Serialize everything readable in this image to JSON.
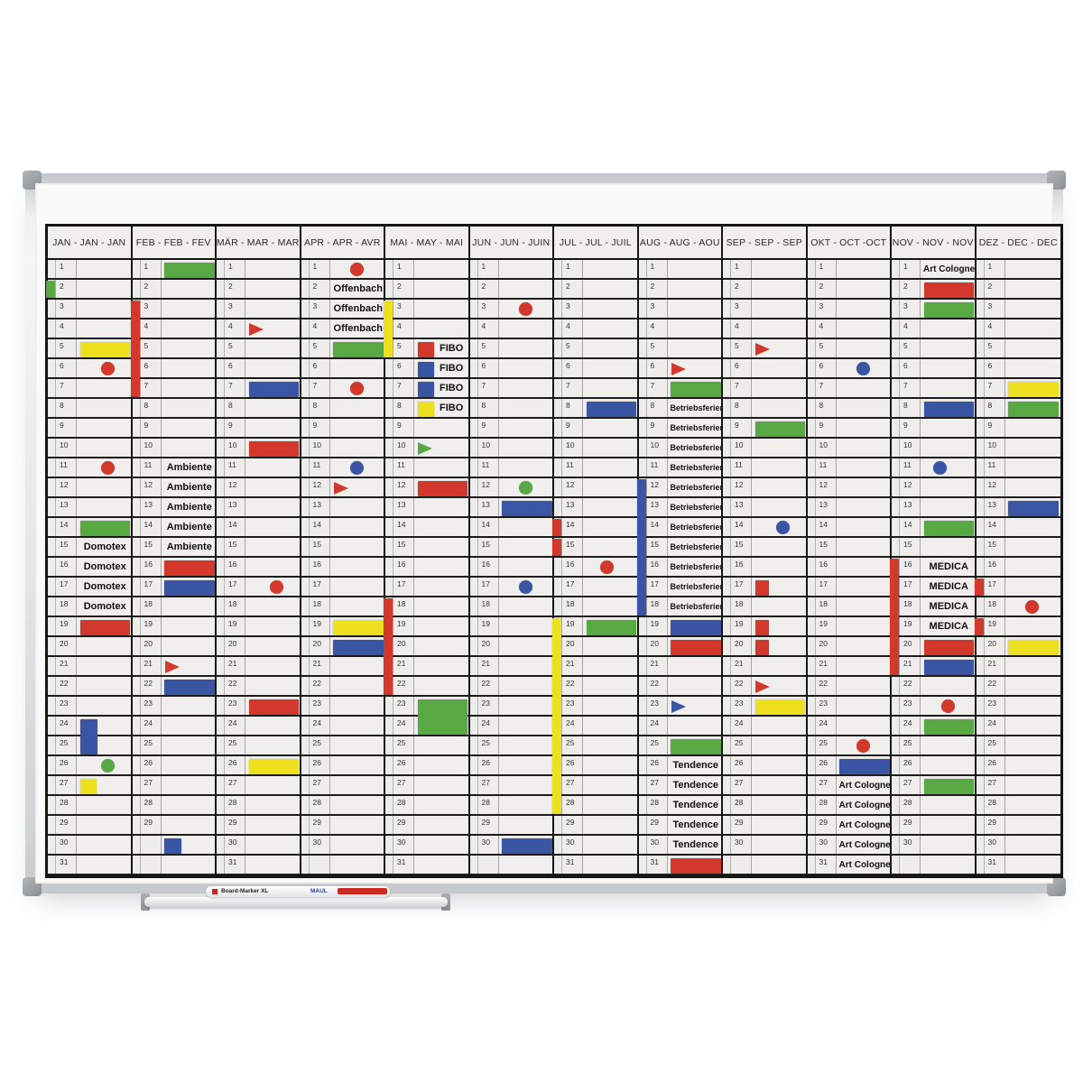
{
  "colors": {
    "red": "#d2382b",
    "green": "#58a944",
    "blue": "#3b55a5",
    "yellow": "#eee01f",
    "grid_line": "#1c1c1c",
    "cell_bg": "#f0efed",
    "header_bg": "#f0efee",
    "frame_silver": "#d9dbdd",
    "corner_cap": "#989ea3"
  },
  "tray": {
    "pen_text": "Board-Marker XL",
    "pen_brand": "MAUL"
  },
  "board": {
    "rows_per_month": 31,
    "months": [
      {
        "label": "JAN - JAN - JAN",
        "numbered_to": 31,
        "markers": [
          {
            "day": 2,
            "type": "vstrip",
            "color": "green",
            "span": 1
          },
          {
            "day": 5,
            "type": "bar",
            "color": "yellow"
          },
          {
            "day": 6,
            "type": "dot",
            "color": "red",
            "x": 0.55
          },
          {
            "day": 11,
            "type": "dot",
            "color": "red",
            "x": 0.55
          },
          {
            "day": 14,
            "type": "bar",
            "color": "green"
          },
          {
            "day": 15,
            "type": "text",
            "label": "Domotex"
          },
          {
            "day": 16,
            "type": "text",
            "label": "Domotex"
          },
          {
            "day": 17,
            "type": "text",
            "label": "Domotex"
          },
          {
            "day": 18,
            "type": "text",
            "label": "Domotex"
          },
          {
            "day": 19,
            "type": "bar",
            "color": "red"
          },
          {
            "day": 24,
            "type": "bar",
            "color": "blue",
            "w": 0.37,
            "span": 2
          },
          {
            "day": 26,
            "type": "dot",
            "color": "green",
            "x": 0.55
          },
          {
            "day": 27,
            "type": "bar",
            "color": "yellow",
            "w": 0.35
          }
        ]
      },
      {
        "label": "FEB - FEB - FEV",
        "numbered_to": 29,
        "markers": [
          {
            "day": 1,
            "type": "bar",
            "color": "green"
          },
          {
            "day": 3,
            "type": "vstrip",
            "color": "red",
            "span": 5
          },
          {
            "day": 11,
            "type": "text",
            "label": "Ambiente"
          },
          {
            "day": 12,
            "type": "text",
            "label": "Ambiente"
          },
          {
            "day": 13,
            "type": "text",
            "label": "Ambiente"
          },
          {
            "day": 14,
            "type": "text",
            "label": "Ambiente"
          },
          {
            "day": 15,
            "type": "text",
            "label": "Ambiente"
          },
          {
            "day": 16,
            "type": "bar",
            "color": "red"
          },
          {
            "day": 17,
            "type": "bar",
            "color": "blue"
          },
          {
            "day": 21,
            "type": "flag",
            "color": "red"
          },
          {
            "day": 22,
            "type": "bar",
            "color": "blue"
          },
          {
            "day": 30,
            "type": "bar",
            "color": "blue",
            "w": 0.35
          }
        ]
      },
      {
        "label": "MÄR - MAR - MAR",
        "numbered_to": 31,
        "markers": [
          {
            "day": 4,
            "type": "flag",
            "color": "red"
          },
          {
            "day": 7,
            "type": "bar",
            "color": "blue"
          },
          {
            "day": 10,
            "type": "bar",
            "color": "red"
          },
          {
            "day": 17,
            "type": "dot",
            "color": "red",
            "x": 0.55
          },
          {
            "day": 23,
            "type": "bar",
            "color": "red"
          },
          {
            "day": 26,
            "type": "bar",
            "color": "yellow"
          }
        ]
      },
      {
        "label": "APR - APR - AVR",
        "numbered_to": 30,
        "markers": [
          {
            "day": 1,
            "type": "dot",
            "color": "red"
          },
          {
            "day": 2,
            "type": "text",
            "label": "Offenbach"
          },
          {
            "day": 3,
            "type": "text",
            "label": "Offenbach"
          },
          {
            "day": 4,
            "type": "text",
            "label": "Offenbach"
          },
          {
            "day": 5,
            "type": "bar",
            "color": "green"
          },
          {
            "day": 7,
            "type": "dot",
            "color": "red"
          },
          {
            "day": 11,
            "type": "dot",
            "color": "blue"
          },
          {
            "day": 12,
            "type": "flag",
            "color": "red"
          },
          {
            "day": 19,
            "type": "bar",
            "color": "yellow"
          },
          {
            "day": 20,
            "type": "bar",
            "color": "blue"
          }
        ]
      },
      {
        "label": "MAI - MAY - MAI",
        "numbered_to": 31,
        "markers": [
          {
            "day": 3,
            "type": "vstrip",
            "color": "yellow",
            "span": 3
          },
          {
            "day": 5,
            "type": "bar",
            "color": "red",
            "w": 0.35
          },
          {
            "day": 5,
            "type": "text",
            "label": "FIBO",
            "x": 0.35
          },
          {
            "day": 6,
            "type": "bar",
            "color": "blue",
            "w": 0.35
          },
          {
            "day": 6,
            "type": "text",
            "label": "FIBO",
            "x": 0.35
          },
          {
            "day": 7,
            "type": "bar",
            "color": "blue",
            "w": 0.35
          },
          {
            "day": 7,
            "type": "text",
            "label": "FIBO",
            "x": 0.35
          },
          {
            "day": 8,
            "type": "bar",
            "color": "yellow",
            "w": 0.35
          },
          {
            "day": 8,
            "type": "text",
            "label": "FIBO",
            "x": 0.35
          },
          {
            "day": 10,
            "type": "flag",
            "color": "green"
          },
          {
            "day": 12,
            "type": "bar",
            "color": "red"
          },
          {
            "day": 18,
            "type": "vstrip",
            "color": "red",
            "span": 5
          },
          {
            "day": 23,
            "type": "bar",
            "color": "green",
            "span": 2
          }
        ]
      },
      {
        "label": "JUN - JUN - JUIN",
        "numbered_to": 30,
        "markers": [
          {
            "day": 3,
            "type": "dot",
            "color": "red"
          },
          {
            "day": 12,
            "type": "dot",
            "color": "green"
          },
          {
            "day": 13,
            "type": "bar",
            "color": "blue"
          },
          {
            "day": 17,
            "type": "dot",
            "color": "blue"
          },
          {
            "day": 30,
            "type": "bar",
            "color": "blue"
          }
        ]
      },
      {
        "label": "JUL - JUL - JUIL",
        "numbered_to": 31,
        "markers": [
          {
            "day": 8,
            "type": "bar",
            "color": "blue"
          },
          {
            "day": 14,
            "type": "vstrip",
            "color": "red",
            "span": 1
          },
          {
            "day": 15,
            "type": "vstrip",
            "color": "red",
            "span": 1
          },
          {
            "day": 16,
            "type": "dot",
            "color": "red",
            "x": 0.42
          },
          {
            "day": 19,
            "type": "vstrip",
            "color": "yellow",
            "span": 10
          },
          {
            "day": 19,
            "type": "bar",
            "color": "green"
          }
        ]
      },
      {
        "label": "AUG - AUG - AOU",
        "numbered_to": 31,
        "markers": [
          {
            "day": 6,
            "type": "flag",
            "color": "red"
          },
          {
            "day": 7,
            "type": "bar",
            "color": "green"
          },
          {
            "day": 8,
            "type": "text",
            "label": "Betriebsferien"
          },
          {
            "day": 9,
            "type": "text",
            "label": "Betriebsferien"
          },
          {
            "day": 10,
            "type": "text",
            "label": "Betriebsferien"
          },
          {
            "day": 11,
            "type": "text",
            "label": "Betriebsferien"
          },
          {
            "day": 12,
            "type": "text",
            "label": "Betriebsferien"
          },
          {
            "day": 13,
            "type": "text",
            "label": "Betriebsferien"
          },
          {
            "day": 14,
            "type": "text",
            "label": "Betriebsferien"
          },
          {
            "day": 15,
            "type": "text",
            "label": "Betriebsferien"
          },
          {
            "day": 16,
            "type": "text",
            "label": "Betriebsferien"
          },
          {
            "day": 17,
            "type": "text",
            "label": "Betriebsferien"
          },
          {
            "day": 18,
            "type": "text",
            "label": "Betriebsferien"
          },
          {
            "day": 12,
            "type": "vstrip",
            "color": "blue",
            "span": 7
          },
          {
            "day": 19,
            "type": "bar",
            "color": "blue"
          },
          {
            "day": 20,
            "type": "bar",
            "color": "red"
          },
          {
            "day": 23,
            "type": "flag",
            "color": "blue"
          },
          {
            "day": 25,
            "type": "bar",
            "color": "green"
          },
          {
            "day": 26,
            "type": "text",
            "label": "Tendence"
          },
          {
            "day": 27,
            "type": "text",
            "label": "Tendence"
          },
          {
            "day": 28,
            "type": "text",
            "label": "Tendence"
          },
          {
            "day": 29,
            "type": "text",
            "label": "Tendence"
          },
          {
            "day": 30,
            "type": "text",
            "label": "Tendence"
          },
          {
            "day": 31,
            "type": "bar",
            "color": "red"
          }
        ]
      },
      {
        "label": "SEP - SEP - SEP",
        "numbered_to": 30,
        "markers": [
          {
            "day": 5,
            "type": "flag",
            "color": "red"
          },
          {
            "day": 9,
            "type": "bar",
            "color": "green"
          },
          {
            "day": 14,
            "type": "dot",
            "color": "blue",
            "x": 0.55
          },
          {
            "day": 17,
            "type": "bar",
            "color": "red",
            "w": 0.3
          },
          {
            "day": 19,
            "type": "bar",
            "color": "red",
            "w": 0.3
          },
          {
            "day": 20,
            "type": "bar",
            "color": "red",
            "w": 0.3
          },
          {
            "day": 22,
            "type": "flag",
            "color": "red"
          },
          {
            "day": 23,
            "type": "bar",
            "color": "yellow"
          }
        ]
      },
      {
        "label": "OKT - OCT -OCT",
        "numbered_to": 31,
        "markers": [
          {
            "day": 6,
            "type": "dot",
            "color": "blue"
          },
          {
            "day": 25,
            "type": "dot",
            "color": "red"
          },
          {
            "day": 26,
            "type": "bar",
            "color": "blue"
          },
          {
            "day": 27,
            "type": "text",
            "label": "Art Cologne"
          },
          {
            "day": 28,
            "type": "text",
            "label": "Art Cologne"
          },
          {
            "day": 29,
            "type": "text",
            "label": "Art Cologne"
          },
          {
            "day": 30,
            "type": "text",
            "label": "Art Cologne"
          },
          {
            "day": 31,
            "type": "text",
            "label": "Art Cologne"
          }
        ]
      },
      {
        "label": "NOV - NOV - NOV",
        "numbered_to": 30,
        "markers": [
          {
            "day": 1,
            "type": "text",
            "label": "Art Cologne"
          },
          {
            "day": 2,
            "type": "bar",
            "color": "red"
          },
          {
            "day": 3,
            "type": "bar",
            "color": "green"
          },
          {
            "day": 8,
            "type": "bar",
            "color": "blue"
          },
          {
            "day": 11,
            "type": "dot",
            "color": "blue",
            "x": 0.33
          },
          {
            "day": 14,
            "type": "bar",
            "color": "green"
          },
          {
            "day": 16,
            "type": "vstrip",
            "color": "red",
            "span": 6
          },
          {
            "day": 16,
            "type": "text",
            "label": "MEDICA"
          },
          {
            "day": 17,
            "type": "text",
            "label": "MEDICA"
          },
          {
            "day": 18,
            "type": "text",
            "label": "MEDICA"
          },
          {
            "day": 19,
            "type": "text",
            "label": "MEDICA"
          },
          {
            "day": 20,
            "type": "bar",
            "color": "red"
          },
          {
            "day": 21,
            "type": "bar",
            "color": "blue"
          },
          {
            "day": 23,
            "type": "dot",
            "color": "red"
          },
          {
            "day": 24,
            "type": "bar",
            "color": "green"
          },
          {
            "day": 27,
            "type": "bar",
            "color": "green"
          }
        ]
      },
      {
        "label": "DEZ - DEC - DEC",
        "numbered_to": 31,
        "markers": [
          {
            "day": 7,
            "type": "bar",
            "color": "yellow"
          },
          {
            "day": 8,
            "type": "bar",
            "color": "green"
          },
          {
            "day": 13,
            "type": "bar",
            "color": "blue"
          },
          {
            "day": 17,
            "type": "vstrip",
            "color": "red",
            "span": 1
          },
          {
            "day": 18,
            "type": "dot",
            "color": "red"
          },
          {
            "day": 19,
            "type": "vstrip",
            "color": "red",
            "span": 1
          },
          {
            "day": 20,
            "type": "bar",
            "color": "yellow"
          }
        ]
      }
    ]
  }
}
